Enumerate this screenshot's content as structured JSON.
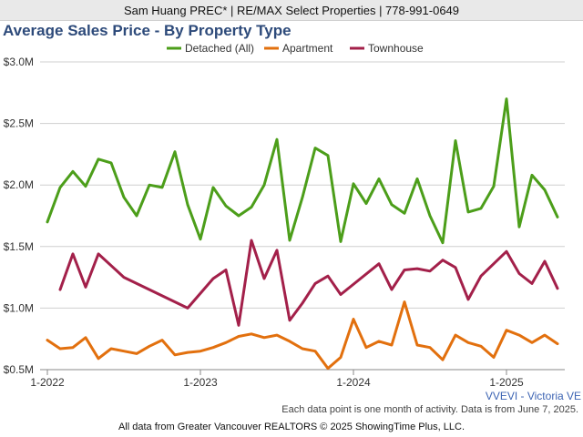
{
  "header": {
    "agent_line": "Sam Huang PREC* | RE/MAX Select Properties | 778-991-0649"
  },
  "chart_data": {
    "type": "line",
    "title": "Average Sales Price - By Property Type",
    "x": [
      "2022-01",
      "2022-02",
      "2022-03",
      "2022-04",
      "2022-05",
      "2022-06",
      "2022-07",
      "2022-08",
      "2022-09",
      "2022-10",
      "2022-11",
      "2022-12",
      "2023-01",
      "2023-02",
      "2023-03",
      "2023-04",
      "2023-05",
      "2023-06",
      "2023-07",
      "2023-08",
      "2023-09",
      "2023-10",
      "2023-11",
      "2023-12",
      "2024-01",
      "2024-02",
      "2024-03",
      "2024-04",
      "2024-05",
      "2024-06",
      "2024-07",
      "2024-08",
      "2024-09",
      "2024-10",
      "2024-11",
      "2024-12",
      "2025-01",
      "2025-02",
      "2025-03",
      "2025-04",
      "2025-05"
    ],
    "x_ticks": [
      "1-2022",
      "1-2023",
      "1-2024",
      "1-2025"
    ],
    "y_ticks": [
      "$0.5M",
      "$1.0M",
      "$1.5M",
      "$2.0M",
      "$2.5M",
      "$3.0M"
    ],
    "ylim": [
      0.5,
      3.0
    ],
    "y_unit": "$M",
    "legend_position": "top-center",
    "grid": true,
    "series": [
      {
        "name": "Detached (All)",
        "color": "#4c9e1a",
        "values": [
          1.7,
          1.98,
          2.11,
          1.99,
          2.21,
          2.18,
          1.9,
          1.75,
          2.0,
          1.98,
          2.27,
          1.84,
          1.56,
          1.98,
          1.83,
          1.75,
          1.82,
          2.0,
          2.37,
          1.55,
          1.9,
          2.3,
          2.24,
          1.54,
          2.01,
          1.85,
          2.05,
          1.84,
          1.77,
          2.05,
          1.75,
          1.53,
          2.36,
          1.78,
          1.81,
          1.99,
          2.7,
          1.66,
          2.08,
          1.96,
          1.74
        ]
      },
      {
        "name": "Apartment",
        "color": "#e2700e",
        "values": [
          0.74,
          0.67,
          0.68,
          0.76,
          0.59,
          0.67,
          0.65,
          0.63,
          0.69,
          0.74,
          0.62,
          0.64,
          0.65,
          0.68,
          0.72,
          0.77,
          0.79,
          0.76,
          0.78,
          0.73,
          0.67,
          0.65,
          0.51,
          0.6,
          0.91,
          0.68,
          0.73,
          0.7,
          1.05,
          0.7,
          0.68,
          0.58,
          0.78,
          0.72,
          0.69,
          0.6,
          0.82,
          0.78,
          0.72,
          0.78,
          0.71
        ]
      },
      {
        "name": "Townhouse",
        "color": "#a3204a",
        "values": [
          null,
          1.15,
          1.44,
          1.17,
          1.44,
          null,
          1.25,
          null,
          null,
          null,
          null,
          1.0,
          null,
          1.24,
          1.31,
          0.86,
          1.55,
          1.24,
          1.47,
          0.9,
          1.04,
          1.2,
          1.26,
          1.11,
          null,
          null,
          1.36,
          1.15,
          1.31,
          1.32,
          1.3,
          1.39,
          1.33,
          1.07,
          1.26,
          null,
          1.46,
          1.28,
          1.2,
          1.38,
          1.16
        ]
      }
    ]
  },
  "region_label": "VVEVI - Victoria VE",
  "note": "Each data point is one month of activity. Data is from June 7, 2025.",
  "footer": "All data from Greater Vancouver REALTORS © 2025 ShowingTime Plus, LLC."
}
